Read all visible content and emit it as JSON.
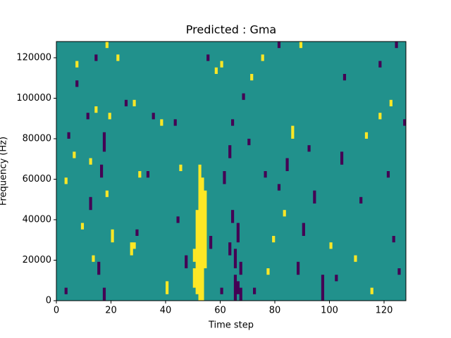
{
  "chart_data": {
    "type": "heatmap",
    "title": "Predicted : Gma",
    "x_label": "Time step",
    "y_label": "Frequency (Hz)",
    "xlim": [
      0,
      128
    ],
    "ylim": [
      0,
      128000
    ],
    "xticks": [
      0,
      20,
      40,
      60,
      80,
      100,
      120
    ],
    "yticks": [
      0,
      20000,
      40000,
      60000,
      80000,
      100000,
      120000
    ],
    "colors": [
      "#440154",
      "#21918c",
      "#fde725"
    ],
    "vlim": [
      -1,
      1
    ],
    "background": 0,
    "cells": [
      [
        51,
        3200,
        44800,
        1
      ],
      [
        52,
        0,
        67200,
        1
      ],
      [
        53,
        0,
        60800,
        1
      ],
      [
        54,
        16000,
        54400,
        1
      ],
      [
        50,
        6400,
        16000,
        1
      ],
      [
        50,
        19200,
        25600,
        1
      ],
      [
        65,
        0,
        12800,
        -1
      ],
      [
        66,
        3200,
        9600,
        -1
      ],
      [
        67,
        0,
        6400,
        -1
      ],
      [
        65,
        16000,
        25600,
        -1
      ],
      [
        66,
        28800,
        38400,
        -1
      ],
      [
        64,
        38400,
        44800,
        -1
      ],
      [
        63,
        22400,
        28800,
        -1
      ],
      [
        67,
        12800,
        19200,
        -1
      ],
      [
        18,
        124800,
        128000,
        1
      ],
      [
        7,
        115200,
        118400,
        1
      ],
      [
        14,
        118400,
        121600,
        -1
      ],
      [
        22,
        118400,
        121600,
        1
      ],
      [
        7,
        105600,
        108800,
        -1
      ],
      [
        28,
        96000,
        99200,
        1
      ],
      [
        25,
        96000,
        99200,
        -1
      ],
      [
        14,
        92800,
        96000,
        1
      ],
      [
        19,
        89600,
        92800,
        1
      ],
      [
        11,
        89600,
        92800,
        -1
      ],
      [
        4,
        80000,
        83200,
        -1
      ],
      [
        6,
        70400,
        73600,
        1
      ],
      [
        17,
        73600,
        83200,
        -1
      ],
      [
        12,
        67200,
        70400,
        1
      ],
      [
        16,
        60800,
        67200,
        -1
      ],
      [
        3,
        57600,
        60800,
        1
      ],
      [
        18,
        51200,
        54400,
        1
      ],
      [
        9,
        35200,
        38400,
        1
      ],
      [
        12,
        44800,
        51200,
        -1
      ],
      [
        20,
        28800,
        35200,
        1
      ],
      [
        15,
        12800,
        19200,
        -1
      ],
      [
        3,
        3200,
        6400,
        -1
      ],
      [
        17,
        0,
        6400,
        -1
      ],
      [
        13,
        19200,
        22400,
        1
      ],
      [
        27,
        22400,
        28800,
        1
      ],
      [
        28,
        25600,
        28800,
        1
      ],
      [
        29,
        32000,
        35200,
        -1
      ],
      [
        33,
        60800,
        64000,
        -1
      ],
      [
        35,
        89600,
        92800,
        -1
      ],
      [
        38,
        86400,
        89600,
        1
      ],
      [
        43,
        86400,
        89600,
        -1
      ],
      [
        45,
        64000,
        67200,
        1
      ],
      [
        47,
        16000,
        22400,
        -1
      ],
      [
        58,
        112000,
        115200,
        1
      ],
      [
        55,
        118400,
        121600,
        -1
      ],
      [
        64,
        86400,
        89600,
        -1
      ],
      [
        63,
        70400,
        76800,
        -1
      ],
      [
        61,
        57600,
        64000,
        -1
      ],
      [
        68,
        99200,
        102400,
        -1
      ],
      [
        70,
        76800,
        80000,
        -1
      ],
      [
        71,
        108800,
        112000,
        1
      ],
      [
        75,
        118400,
        121600,
        1
      ],
      [
        76,
        60800,
        64000,
        -1
      ],
      [
        79,
        28800,
        32000,
        1
      ],
      [
        81,
        54400,
        57600,
        -1
      ],
      [
        83,
        41600,
        44800,
        1
      ],
      [
        84,
        64000,
        70400,
        -1
      ],
      [
        86,
        80000,
        86400,
        1
      ],
      [
        88,
        12800,
        19200,
        -1
      ],
      [
        90,
        32000,
        38400,
        -1
      ],
      [
        92,
        73600,
        76800,
        -1
      ],
      [
        94,
        48000,
        54400,
        -1
      ],
      [
        97,
        0,
        12800,
        -1
      ],
      [
        100,
        25600,
        28800,
        1
      ],
      [
        102,
        9600,
        12800,
        -1
      ],
      [
        104,
        67200,
        73600,
        -1
      ],
      [
        105,
        108800,
        112000,
        -1
      ],
      [
        109,
        19200,
        22400,
        1
      ],
      [
        111,
        48000,
        51200,
        -1
      ],
      [
        113,
        80000,
        83200,
        1
      ],
      [
        115,
        3200,
        6400,
        1
      ],
      [
        118,
        89600,
        92800,
        1
      ],
      [
        121,
        60800,
        64000,
        -1
      ],
      [
        123,
        28800,
        32000,
        -1
      ],
      [
        125,
        12800,
        16000,
        -1
      ],
      [
        127,
        86400,
        89600,
        -1
      ],
      [
        122,
        96000,
        99200,
        1
      ],
      [
        118,
        115200,
        118400,
        -1
      ],
      [
        124,
        124800,
        128000,
        -1
      ],
      [
        81,
        124800,
        128000,
        -1
      ],
      [
        89,
        124800,
        128000,
        1
      ],
      [
        60,
        115200,
        118400,
        1
      ],
      [
        40,
        3200,
        9600,
        1
      ],
      [
        30,
        60800,
        64000,
        1
      ],
      [
        44,
        38400,
        41600,
        -1
      ],
      [
        56,
        25600,
        32000,
        -1
      ],
      [
        72,
        3200,
        6400,
        -1
      ],
      [
        77,
        12800,
        16000,
        1
      ],
      [
        60,
        3200,
        6400,
        -1
      ]
    ]
  }
}
